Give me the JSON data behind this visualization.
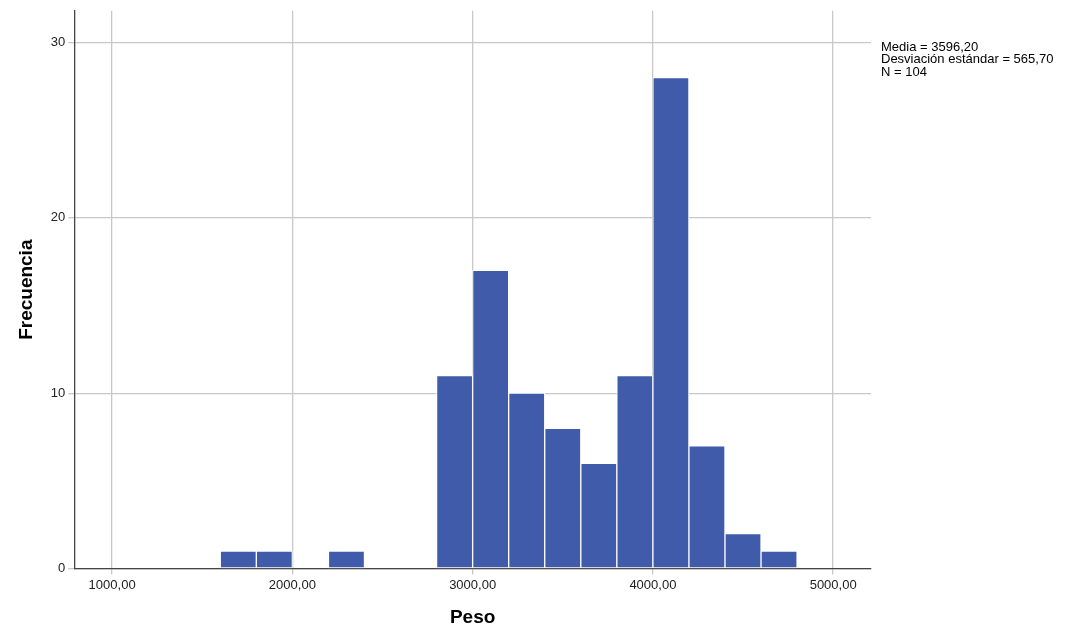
{
  "chart_data": {
    "type": "histogram",
    "xlabel": "Peso",
    "ylabel": "Frecuencia",
    "bins": [
      1600,
      1800,
      2000,
      2200,
      2400,
      2600,
      2800,
      3000,
      3200,
      3400,
      3600,
      3800,
      4000,
      4200,
      4400,
      4600,
      4800
    ],
    "values": [
      1,
      1,
      0,
      1,
      0,
      0,
      11,
      17,
      10,
      8,
      6,
      11,
      28,
      7,
      2,
      1
    ],
    "color": "#3f5ba9",
    "xlim": [
      790,
      5210
    ],
    "ylim": [
      0,
      31.8
    ],
    "xticks": [
      {
        "value": 1000,
        "label": "1000,00"
      },
      {
        "value": 2000,
        "label": "2000,00"
      },
      {
        "value": 3000,
        "label": "3000,00"
      },
      {
        "value": 4000,
        "label": "4000,00"
      },
      {
        "value": 5000,
        "label": "5000,00"
      }
    ],
    "yticks": [
      0,
      10,
      20,
      30
    ],
    "grid": true,
    "annotations": [
      "Media = 3596,20",
      "Desviación estándar = 565,70",
      "N = 104"
    ]
  }
}
